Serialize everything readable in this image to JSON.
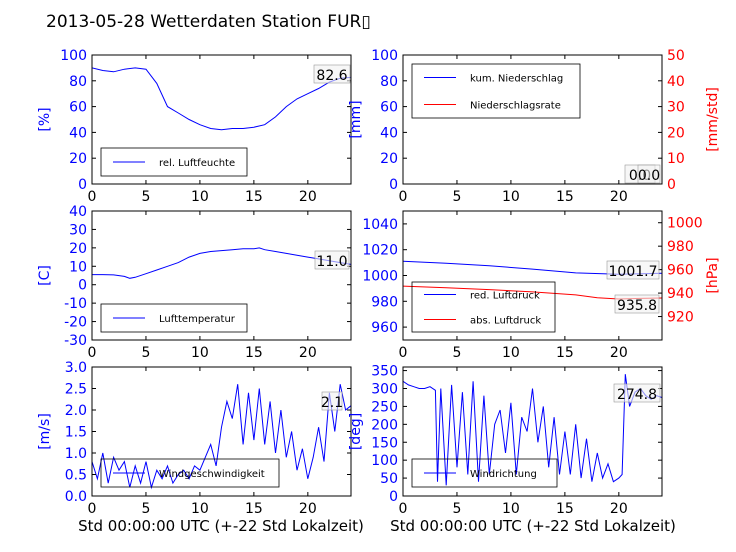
{
  "figure": {
    "title": "2013-05-28 Wetterdaten Station FUR▯",
    "xlabel": "Std 00:00:00 UTC (+-22 Std Lokalzeit)"
  },
  "colors": {
    "blue": "#0000ff",
    "red": "#ff0000",
    "black": "#000000"
  },
  "chart_data": [
    {
      "type": "line",
      "panel": "humidity",
      "ylabel": "[%]",
      "xlim": [
        0,
        24
      ],
      "ylim": [
        0,
        100
      ],
      "xticks": [
        0,
        5,
        10,
        15,
        20
      ],
      "yticks": [
        0,
        20,
        40,
        60,
        80,
        100
      ],
      "annotation": "82.6",
      "legend_position": "lower-left",
      "series": [
        {
          "name": "rel. Luftfeuchte",
          "color": "#0000ff",
          "x": [
            0,
            1,
            2,
            3,
            4,
            5,
            6,
            7,
            8,
            9,
            10,
            11,
            12,
            13,
            14,
            15,
            16,
            17,
            18,
            19,
            20,
            21,
            22,
            23,
            24
          ],
          "y": [
            90,
            88,
            87,
            89,
            90,
            89,
            78,
            60,
            55,
            50,
            46,
            43,
            42,
            43,
            43,
            44,
            46,
            52,
            60,
            66,
            70,
            74,
            79,
            82,
            82.6
          ]
        }
      ]
    },
    {
      "type": "line",
      "panel": "precipitation",
      "ylabel": "[mm]",
      "ylabel_right": "[mm/std]",
      "xlim": [
        0,
        24
      ],
      "ylim": [
        0,
        100
      ],
      "ylim_right": [
        0,
        50
      ],
      "xticks": [
        0,
        5,
        10,
        15,
        20
      ],
      "yticks": [
        0,
        20,
        40,
        60,
        80,
        100
      ],
      "yticks_right": [
        0,
        10,
        20,
        30,
        40,
        50
      ],
      "annotation": "0.0",
      "annotation2": "0.0",
      "legend_position": "upper-left",
      "series": [
        {
          "name": "kum. Niederschlag",
          "color": "#0000ff",
          "x": [
            0,
            24
          ],
          "y": [
            0,
            0
          ]
        },
        {
          "name": "Niederschlagsrate",
          "color": "#ff0000",
          "x": [
            0,
            24
          ],
          "y": [
            0,
            0
          ]
        }
      ]
    },
    {
      "type": "line",
      "panel": "temperature",
      "ylabel": "[C]",
      "xlim": [
        0,
        24
      ],
      "ylim": [
        -30,
        40
      ],
      "xticks": [
        0,
        5,
        10,
        15,
        20
      ],
      "yticks": [
        -30,
        -20,
        -10,
        0,
        10,
        20,
        30,
        40
      ],
      "annotation": "11.0",
      "legend_position": "lower-left",
      "series": [
        {
          "name": "Lufttemperatur",
          "color": "#0000ff",
          "x": [
            0,
            1,
            2,
            3,
            3.5,
            4,
            5,
            6,
            7,
            8,
            9,
            10,
            11,
            12,
            13,
            14,
            15,
            15.5,
            16,
            17,
            18,
            19,
            20,
            21,
            22,
            23,
            24
          ],
          "y": [
            5.5,
            5.5,
            5.3,
            4.5,
            3.5,
            4,
            6,
            8,
            10,
            12,
            15,
            17,
            18,
            18.5,
            19,
            19.5,
            19.5,
            20,
            19,
            18,
            17,
            16,
            15,
            14,
            13,
            12,
            11
          ]
        }
      ]
    },
    {
      "type": "line",
      "panel": "pressure",
      "ylabel_right": "[hPa]",
      "xlim": [
        0,
        24
      ],
      "ylim": [
        950,
        1050
      ],
      "ylim_right": [
        900,
        1010
      ],
      "xticks": [
        0,
        5,
        10,
        15,
        20
      ],
      "yticks": [
        960,
        980,
        1000,
        1020,
        1040
      ],
      "yticks_right": [
        920,
        940,
        960,
        980,
        1000
      ],
      "annotation": "1001.7",
      "annotation2": "935.8",
      "legend_position": "lower-left",
      "series": [
        {
          "name": "red. Luftdruck",
          "color": "#0000ff",
          "x": [
            0,
            4,
            8,
            12,
            16,
            20,
            24
          ],
          "y": [
            1011,
            1009.5,
            1007.5,
            1005,
            1002,
            1001,
            1001.7
          ]
        },
        {
          "name": "abs. Luftdruck",
          "color": "#ff0000",
          "x": [
            0,
            4,
            8,
            12,
            16,
            18,
            20,
            22,
            24
          ],
          "y": [
            946,
            944.5,
            943,
            941,
            938.5,
            936,
            935,
            935.5,
            935.8
          ]
        }
      ]
    },
    {
      "type": "line",
      "panel": "wind-speed",
      "ylabel": "[m/s]",
      "xlim": [
        0,
        24
      ],
      "ylim": [
        0,
        3
      ],
      "xticks": [
        0,
        5,
        10,
        15,
        20
      ],
      "yticks": [
        0.0,
        0.5,
        1.0,
        1.5,
        2.0,
        2.5,
        3.0
      ],
      "annotation": "2.1",
      "legend_position": "lower-left",
      "series": [
        {
          "name": "Windgeschwindigkeit",
          "color": "#0000ff",
          "x": [
            0,
            0.5,
            1,
            1.5,
            2,
            2.5,
            3,
            3.5,
            4,
            4.5,
            5,
            5.5,
            6,
            6.5,
            7,
            7.5,
            8,
            8.5,
            9,
            9.5,
            10,
            10.5,
            11,
            11.5,
            12,
            12.5,
            13,
            13.5,
            14,
            14.5,
            15,
            15.5,
            16,
            16.5,
            17,
            17.5,
            18,
            18.5,
            19,
            19.5,
            20,
            20.5,
            21,
            21.5,
            22,
            22.5,
            23,
            23.5,
            24
          ],
          "y": [
            0.8,
            0.4,
            1.0,
            0.3,
            0.9,
            0.6,
            0.8,
            0.2,
            0.7,
            0.3,
            0.8,
            0.2,
            0.6,
            0.4,
            0.7,
            0.3,
            0.5,
            0.6,
            0.4,
            0.7,
            0.6,
            0.9,
            1.2,
            0.7,
            1.6,
            2.2,
            1.8,
            2.6,
            1.2,
            2.4,
            1.3,
            2.5,
            1.2,
            2.2,
            1.0,
            2.0,
            0.9,
            1.5,
            0.6,
            1.1,
            0.4,
            0.9,
            1.6,
            0.8,
            2.4,
            1.5,
            2.6,
            2.0,
            2.1
          ]
        }
      ]
    },
    {
      "type": "line",
      "panel": "wind-direction",
      "ylabel": "[deg]",
      "xlim": [
        0,
        24
      ],
      "ylim": [
        0,
        360
      ],
      "xticks": [
        0,
        5,
        10,
        15,
        20
      ],
      "yticks": [
        0,
        50,
        100,
        150,
        200,
        250,
        300,
        350
      ],
      "annotation": "274.8",
      "legend_position": "lower-left",
      "series": [
        {
          "name": "Windrichtung",
          "color": "#0000ff",
          "x": [
            0,
            0.5,
            1,
            1.5,
            2,
            2.5,
            3,
            3.2,
            3.5,
            4,
            4.5,
            5,
            5.5,
            6,
            6.5,
            7,
            7.5,
            8,
            8.5,
            9,
            9.5,
            10,
            10.5,
            11,
            11.5,
            12,
            12.5,
            13,
            13.5,
            14,
            14.5,
            15,
            15.5,
            16,
            16.5,
            17,
            17.5,
            18,
            18.5,
            19,
            19.5,
            20,
            20.3,
            20.6,
            21,
            21.5,
            22,
            22.5,
            23,
            23.5,
            24
          ],
          "y": [
            320,
            310,
            305,
            300,
            300,
            305,
            295,
            40,
            300,
            30,
            310,
            80,
            290,
            60,
            320,
            40,
            280,
            60,
            200,
            240,
            120,
            260,
            60,
            220,
            180,
            300,
            150,
            250,
            80,
            220,
            60,
            180,
            60,
            200,
            50,
            160,
            40,
            120,
            50,
            90,
            40,
            50,
            60,
            340,
            250,
            290,
            300,
            280,
            270,
            280,
            274.8
          ]
        }
      ]
    }
  ]
}
